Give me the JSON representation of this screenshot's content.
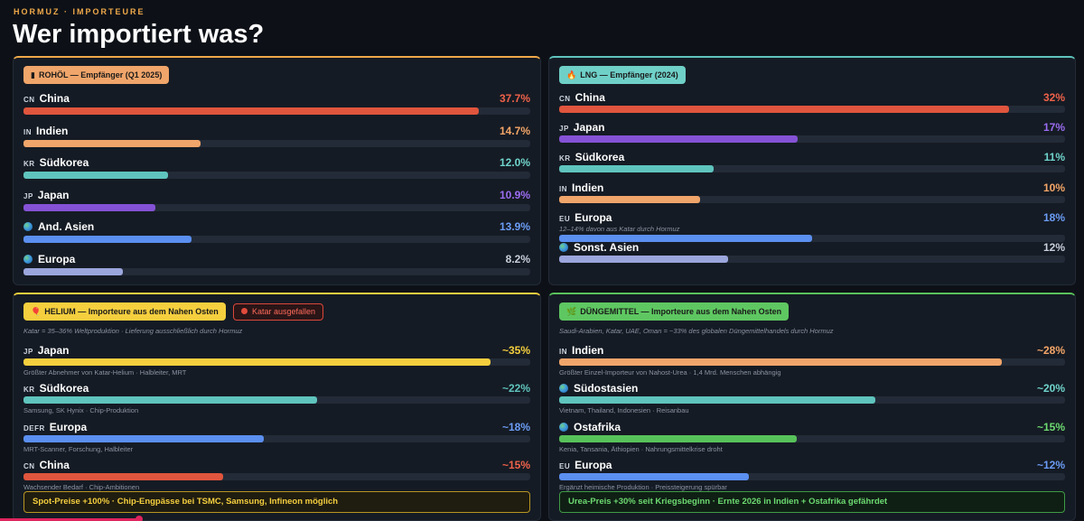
{
  "header": {
    "kicker": "HORMUZ · IMPORTEURE",
    "title": "Wer importiert was?"
  },
  "colors": {
    "orange": "#f0a94a",
    "red": "#e0553d",
    "teal": "#5fc4bd",
    "purple": "#8552d6",
    "blue": "#5b8ff0",
    "lavender": "#9ba6dd",
    "yellow": "#f5cf3e",
    "green": "#58c25a"
  },
  "chart_data": [
    {
      "type": "bar",
      "id": "oil",
      "title": "ROHÖL — Empfänger (Q1 2025)",
      "icon": "oil-barrel-icon",
      "categories": [
        "China",
        "Indien",
        "Südkorea",
        "Japan",
        "And. Asien",
        "Europa"
      ],
      "codes": [
        "CN",
        "IN",
        "KR",
        "JP",
        "",
        ""
      ],
      "values": [
        37.7,
        14.7,
        12.0,
        10.9,
        13.9,
        8.2
      ],
      "labels": [
        "37.7%",
        "14.7%",
        "12.0%",
        "10.9%",
        "13.9%",
        "8.2%"
      ],
      "colors": [
        "#e0553d",
        "#f0a56a",
        "#5fc4bd",
        "#8552d6",
        "#5b8ff0",
        "#9ba6dd"
      ],
      "label_colors": [
        "#f0624a",
        "#f5a668",
        "#6fd4cc",
        "#9b6cf0",
        "#6b9cf5",
        "#c8cedb"
      ],
      "unit": "%",
      "max": 42
    },
    {
      "type": "bar",
      "id": "lng",
      "title": "LNG — Empfänger (2024)",
      "icon": "flame-icon",
      "categories": [
        "China",
        "Japan",
        "Südkorea",
        "Indien",
        "Europa",
        "Sonst. Asien"
      ],
      "codes": [
        "CN",
        "JP",
        "KR",
        "IN",
        "EU",
        ""
      ],
      "values": [
        32,
        17,
        11,
        10,
        18,
        12
      ],
      "labels": [
        "32%",
        "17%",
        "11%",
        "10%",
        "18%",
        "12%"
      ],
      "colors": [
        "#e0553d",
        "#8552d6",
        "#5fc4bd",
        "#f0a56a",
        "#5b8ff0",
        "#9ba6dd"
      ],
      "label_colors": [
        "#f0624a",
        "#9b6cf0",
        "#6fd4cc",
        "#f5a668",
        "#6b9cf5",
        "#c8cedb"
      ],
      "subs": [
        "",
        "",
        "",
        "",
        "12–14% davon aus Katar durch Hormuz",
        ""
      ],
      "unit": "%",
      "max": 36
    },
    {
      "type": "bar",
      "id": "he",
      "title": "HELIUM — Importeure aus dem Nahen Osten",
      "icon": "balloon-icon",
      "categories": [
        "Japan",
        "Südkorea",
        "Europa",
        "China"
      ],
      "codes": [
        "JP",
        "KR",
        "DEFR",
        "CN"
      ],
      "values": [
        35,
        22,
        18,
        15
      ],
      "labels": [
        "~35%",
        "~22%",
        "~18%",
        "~15%"
      ],
      "colors": [
        "#f5cf3e",
        "#5fc4bd",
        "#5b8ff0",
        "#e0553d"
      ],
      "label_colors": [
        "#f5cf3e",
        "#5fc4bd",
        "#6b9cf5",
        "#f0624a"
      ],
      "subs": [
        "Größter Abnehmer von Katar-Helium · Halbleiter, MRT",
        "Samsung, SK Hynix · Chip-Produktion",
        "MRT-Scanner, Forschung, Halbleiter",
        "Wachsender Bedarf · Chip-Ambitionen"
      ],
      "unit": "%",
      "max": 38
    },
    {
      "type": "bar",
      "id": "fert",
      "title": "DÜNGEMITTEL — Importeure aus dem Nahen Osten",
      "icon": "leaf-icon",
      "categories": [
        "Indien",
        "Südostasien",
        "Ostafrika",
        "Europa"
      ],
      "codes": [
        "IN",
        "",
        "",
        "EU"
      ],
      "values": [
        28,
        20,
        15,
        12
      ],
      "labels": [
        "~28%",
        "~20%",
        "~15%",
        "~12%"
      ],
      "colors": [
        "#f0a56a",
        "#5fc4bd",
        "#58c25a",
        "#5b8ff0"
      ],
      "label_colors": [
        "#f5a668",
        "#6fd4cc",
        "#6ddb71",
        "#6b9cf5"
      ],
      "subs": [
        "Größter Einzel-Importeur von Nahost-Urea · 1,4 Mrd. Menschen abhängig",
        "Vietnam, Thailand, Indonesien · Reisanbau",
        "Kenia, Tansania, Äthiopien · Nahrungsmittelkrise droht",
        "Ergänzt heimische Produktion · Preissteigerung spürbar"
      ],
      "unit": "%",
      "max": 32
    }
  ],
  "helium": {
    "alert": "Katar ausgefallen",
    "note": "Katar = 35–36% Weltproduktion · Lieferung ausschließlich durch Hormuz",
    "footer": "Spot-Preise +100% · Chip-Engpässe bei TSMC, Samsung, Infineon möglich"
  },
  "fertilizer": {
    "note": "Saudi-Arabien, Katar, UAE, Oman = ~33% des globalen Düngemittelhandels durch Hormuz",
    "footer": "Urea-Preis +30% seit Kriegsbeginn · Ernte 2026 in Indien + Ostafrika gefährdet"
  },
  "video": {
    "progress": 0.13
  }
}
